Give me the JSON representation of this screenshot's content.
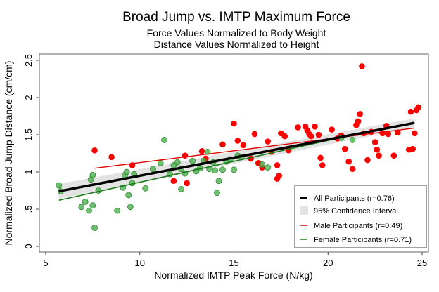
{
  "chart_data": {
    "type": "scatter",
    "title": "Broad Jump vs. IMTP Maximum Force",
    "subtitle": [
      "Force Values Normalized to Body Weight",
      "Distance Values Normalized to Height"
    ],
    "xlabel": "Normalized IMTP Peak Force (N/kg)",
    "ylabel": "Normalized Broad Jump Distance (cm/cm)",
    "xlim": [
      4.7,
      25.4
    ],
    "ylim": [
      -0.08,
      2.6
    ],
    "xticks": [
      5,
      10,
      15,
      20,
      25
    ],
    "xtick_labels": [
      "5",
      "10",
      "15",
      "20",
      "25"
    ],
    "yticks": [
      0,
      0.5,
      1,
      1.5,
      2,
      2.5
    ],
    "ytick_labels": [
      "0",
      ".5",
      "1",
      "1.5",
      "2",
      "2.5"
    ],
    "grid": false,
    "legend_position": "bottom-right",
    "colors": {
      "all": "#000000",
      "ci": "#e3e3e3",
      "male": "#e00000",
      "female": "#1a7a1a",
      "male_point": "#ff0000",
      "female_point": "#4caf50"
    },
    "legend": [
      {
        "key": "all",
        "label": "All Participants (r=0.76)"
      },
      {
        "key": "ci",
        "label": "95% Confidence Interval"
      },
      {
        "key": "male",
        "label": "Male Participants (r=0.49)"
      },
      {
        "key": "female",
        "label": "Female Participants (r=0.71)"
      }
    ],
    "fit_lines": {
      "all": {
        "x": [
          5.7,
          24.6
        ],
        "y": [
          0.74,
          1.66
        ],
        "r": 0.76
      },
      "ci": {
        "x": [
          5.7,
          24.6
        ],
        "upper": [
          0.84,
          1.72
        ],
        "lower": [
          0.64,
          1.6
        ]
      },
      "male": {
        "x": [
          7.6,
          24.6
        ],
        "y": [
          1.05,
          1.59
        ],
        "r": 0.49
      },
      "female": {
        "x": [
          5.7,
          21.0
        ],
        "y": [
          0.62,
          1.48
        ],
        "r": 0.71
      }
    },
    "series": [
      {
        "name": "Male Participants",
        "points": [
          [
            7.6,
            1.29
          ],
          [
            8.5,
            1.2
          ],
          [
            9.6,
            1.09
          ],
          [
            11.8,
            0.88
          ],
          [
            12.4,
            1.22
          ],
          [
            12.5,
            0.85
          ],
          [
            13.3,
            1.28
          ],
          [
            13.5,
            1.18
          ],
          [
            14.4,
            1.37
          ],
          [
            15.0,
            1.65
          ],
          [
            15.2,
            1.42
          ],
          [
            15.5,
            1.36
          ],
          [
            15.9,
            1.18
          ],
          [
            16.1,
            1.51
          ],
          [
            16.3,
            1.12
          ],
          [
            16.5,
            1.06
          ],
          [
            16.8,
            1.41
          ],
          [
            17.0,
            1.27
          ],
          [
            17.3,
            1.09
          ],
          [
            17.4,
            0.95
          ],
          [
            17.5,
            1.52
          ],
          [
            17.7,
            1.48
          ],
          [
            17.9,
            1.29
          ],
          [
            17.3,
            0.91
          ],
          [
            18.4,
            1.6
          ],
          [
            18.8,
            1.61
          ],
          [
            18.9,
            1.56
          ],
          [
            19.0,
            1.51
          ],
          [
            19.1,
            1.48
          ],
          [
            19.3,
            1.61
          ],
          [
            19.5,
            1.5
          ],
          [
            19.6,
            1.19
          ],
          [
            19.7,
            1.09
          ],
          [
            20.2,
            1.57
          ],
          [
            20.7,
            1.49
          ],
          [
            20.9,
            1.31
          ],
          [
            21.1,
            1.14
          ],
          [
            21.3,
            1.04
          ],
          [
            21.5,
            1.63
          ],
          [
            21.6,
            1.68
          ],
          [
            21.7,
            1.78
          ],
          [
            21.8,
            2.42
          ],
          [
            21.9,
            1.52
          ],
          [
            22.1,
            1.16
          ],
          [
            22.3,
            1.54
          ],
          [
            22.5,
            1.4
          ],
          [
            22.6,
            1.3
          ],
          [
            22.7,
            1.22
          ],
          [
            22.9,
            1.52
          ],
          [
            23.1,
            1.62
          ],
          [
            23.5,
            1.22
          ],
          [
            23.7,
            1.53
          ],
          [
            24.3,
            1.3
          ],
          [
            24.4,
            1.81
          ],
          [
            24.5,
            1.31
          ],
          [
            24.6,
            1.52
          ],
          [
            24.7,
            1.83
          ],
          [
            24.8,
            1.87
          ],
          [
            23.2,
            1.51
          ],
          [
            20.5,
            1.45
          ]
        ]
      },
      {
        "name": "Female Participants",
        "points": [
          [
            5.7,
            0.82
          ],
          [
            5.8,
            0.74
          ],
          [
            6.9,
            0.53
          ],
          [
            7.1,
            0.6
          ],
          [
            7.3,
            0.48
          ],
          [
            7.4,
            0.9
          ],
          [
            7.5,
            0.96
          ],
          [
            7.5,
            0.55
          ],
          [
            7.6,
            0.25
          ],
          [
            7.8,
            0.75
          ],
          [
            8.8,
            0.48
          ],
          [
            9.1,
            0.79
          ],
          [
            9.2,
            0.95
          ],
          [
            9.3,
            1.0
          ],
          [
            9.4,
            0.69
          ],
          [
            9.5,
            0.53
          ],
          [
            9.6,
            0.85
          ],
          [
            9.7,
            0.97
          ],
          [
            10.3,
            0.78
          ],
          [
            10.7,
            1.04
          ],
          [
            11.1,
            1.12
          ],
          [
            11.3,
            1.43
          ],
          [
            11.6,
            0.97
          ],
          [
            11.8,
            1.09
          ],
          [
            12.0,
            1.13
          ],
          [
            12.2,
            0.77
          ],
          [
            12.4,
            0.98
          ],
          [
            12.8,
            1.15
          ],
          [
            13.0,
            1.01
          ],
          [
            13.2,
            1.05
          ],
          [
            13.6,
            1.27
          ],
          [
            13.7,
            1.04
          ],
          [
            13.9,
            1.13
          ],
          [
            14.0,
            1.02
          ],
          [
            14.1,
            0.72
          ],
          [
            14.2,
            0.88
          ],
          [
            14.4,
            1.03
          ],
          [
            14.6,
            1.14
          ],
          [
            14.8,
            1.17
          ],
          [
            15.0,
            1.03
          ],
          [
            15.2,
            1.22
          ],
          [
            15.4,
            1.2
          ],
          [
            16.5,
            1.1
          ],
          [
            16.8,
            1.06
          ],
          [
            20.7,
            1.46
          ],
          [
            21.3,
            1.43
          ],
          [
            12.2,
            1.04
          ],
          [
            13.4,
            1.15
          ]
        ]
      }
    ]
  }
}
